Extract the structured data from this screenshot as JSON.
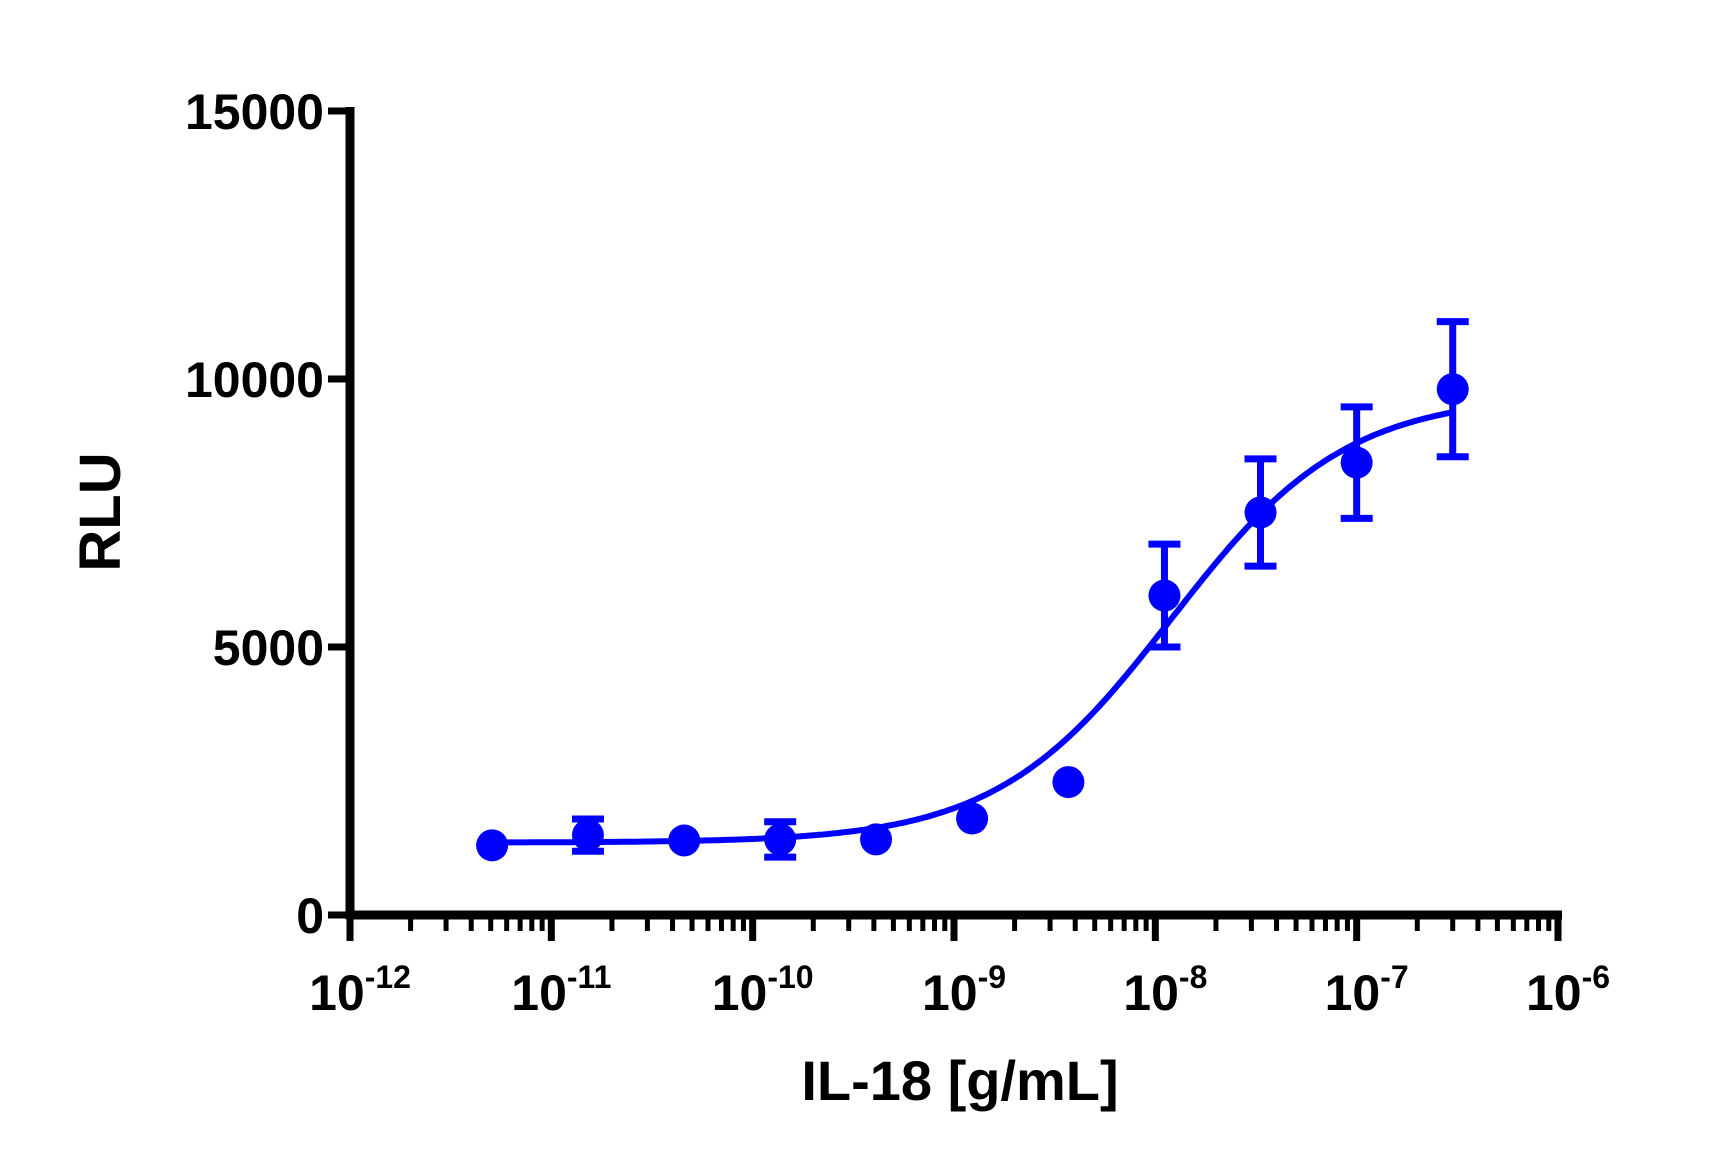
{
  "chart_data": {
    "type": "scatter",
    "xlabel": "IL-18 [g/mL]",
    "ylabel": "RLU",
    "x_scale": "log",
    "xlim": [
      1e-12,
      1e-06
    ],
    "ylim": [
      0,
      15000
    ],
    "x_ticks": [
      {
        "base": "10",
        "exp": "-12",
        "value": 1e-12
      },
      {
        "base": "10",
        "exp": "-11",
        "value": 1e-11
      },
      {
        "base": "10",
        "exp": "-10",
        "value": 1e-10
      },
      {
        "base": "10",
        "exp": "-9",
        "value": 1e-09
      },
      {
        "base": "10",
        "exp": "-8",
        "value": 1e-08
      },
      {
        "base": "10",
        "exp": "-7",
        "value": 1e-07
      },
      {
        "base": "10",
        "exp": "-6",
        "value": 1e-06
      }
    ],
    "y_ticks": [
      {
        "label": "0",
        "value": 0
      },
      {
        "label": "5000",
        "value": 5000
      },
      {
        "label": "10000",
        "value": 10000
      },
      {
        "label": "15000",
        "value": 15000
      }
    ],
    "grid": false,
    "color": "#0000ff",
    "series": [
      {
        "points": [
          {
            "x": 5.08e-12,
            "y": 1300,
            "err": null
          },
          {
            "x": 1.52e-11,
            "y": 1490,
            "err": 300
          },
          {
            "x": 4.57e-11,
            "y": 1390,
            "err": null
          },
          {
            "x": 1.37e-10,
            "y": 1410,
            "err": 330
          },
          {
            "x": 4.1e-10,
            "y": 1410,
            "err": null
          },
          {
            "x": 1.23e-09,
            "y": 1800,
            "err": null
          },
          {
            "x": 3.7e-09,
            "y": 2480,
            "err": null
          },
          {
            "x": 1.11e-08,
            "y": 5960,
            "err": 960
          },
          {
            "x": 3.33e-08,
            "y": 7510,
            "err": 1000
          },
          {
            "x": 1e-07,
            "y": 8440,
            "err": 1040
          },
          {
            "x": 3e-07,
            "y": 9810,
            "err": 1260
          }
        ],
        "fit": {
          "model": "4PL",
          "bottom": 1350,
          "top": 9700,
          "ec50": 1.2e-08,
          "hill": 1.0,
          "x_range": [
            5.08e-12,
            3e-07
          ]
        }
      }
    ]
  }
}
